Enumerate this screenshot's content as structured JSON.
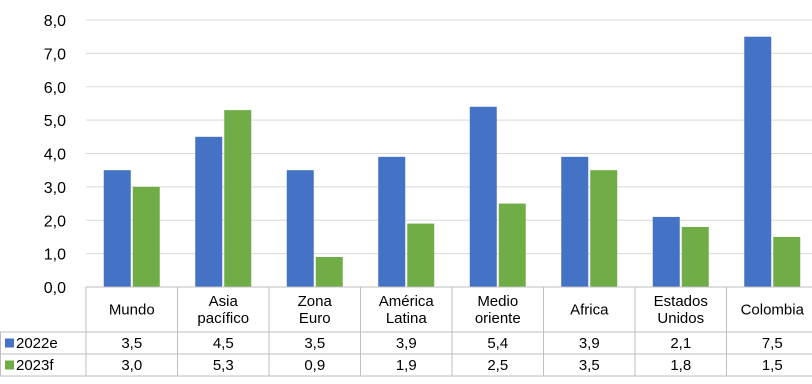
{
  "chart_data": {
    "type": "bar",
    "title": "",
    "xlabel": "",
    "ylabel": "",
    "ylim": [
      0,
      8
    ],
    "yticks": [
      "0,0",
      "1,0",
      "2,0",
      "3,0",
      "4,0",
      "5,0",
      "6,0",
      "7,0",
      "8,0"
    ],
    "grid": true,
    "legend": "data-table-left",
    "categories": [
      [
        "Mundo"
      ],
      [
        "Asia",
        "pacífico"
      ],
      [
        "Zona",
        "Euro"
      ],
      [
        "América",
        "Latina"
      ],
      [
        "Medio",
        "oriente"
      ],
      [
        "Africa"
      ],
      [
        "Estados",
        "Unidos"
      ],
      [
        "Colombia"
      ]
    ],
    "series": [
      {
        "name": "2022e",
        "color": "#4472C4",
        "values": [
          3.5,
          4.5,
          3.5,
          3.9,
          5.4,
          3.9,
          2.1,
          7.5
        ],
        "labels": [
          "3,5",
          "4,5",
          "3,5",
          "3,9",
          "5,4",
          "3,9",
          "2,1",
          "7,5"
        ]
      },
      {
        "name": "2023f",
        "color": "#70AD47",
        "values": [
          3.0,
          5.3,
          0.9,
          1.9,
          2.5,
          3.5,
          1.8,
          1.5
        ],
        "labels": [
          "3,0",
          "5,3",
          "0,9",
          "1,9",
          "2,5",
          "3,5",
          "1,8",
          "1,5"
        ]
      }
    ]
  }
}
